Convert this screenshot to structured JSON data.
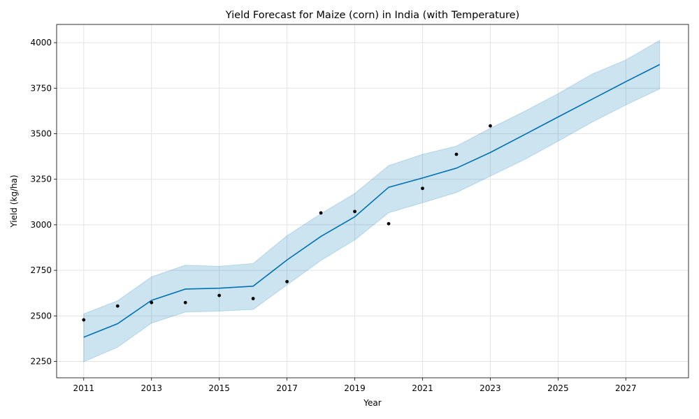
{
  "chart_data": {
    "type": "line",
    "title": "Yield Forecast for Maize (corn) in India (with Temperature)",
    "xlabel": "Year",
    "ylabel": "Yield (kg/ha)",
    "xlim": [
      2010.2,
      2028.85
    ],
    "ylim": [
      2160,
      4100
    ],
    "x_ticks": [
      2011,
      2013,
      2015,
      2017,
      2019,
      2021,
      2023,
      2025,
      2027
    ],
    "y_ticks": [
      2250,
      2500,
      2750,
      3000,
      3250,
      3500,
      3750,
      4000
    ],
    "grid": true,
    "colors": {
      "forecast": "#0072b2",
      "band": "#0072b2",
      "actual": "#000000"
    },
    "series": [
      {
        "kind": "forecast",
        "x": [
          2011,
          2012,
          2013,
          2014,
          2015,
          2016,
          2017,
          2018,
          2019,
          2020,
          2021,
          2022,
          2023,
          2024,
          2025,
          2026,
          2027,
          2028
        ],
        "y": [
          2383,
          2457,
          2585,
          2647,
          2652,
          2663,
          2807,
          2936,
          3044,
          3206,
          3257,
          3311,
          3397,
          3494,
          3592,
          3689,
          3786,
          3880
        ],
        "lower": [
          2248,
          2328,
          2460,
          2521,
          2526,
          2535,
          2670,
          2804,
          2917,
          3066,
          3121,
          3177,
          3267,
          3357,
          3459,
          3563,
          3658,
          3746
        ],
        "upper": [
          2511,
          2583,
          2714,
          2778,
          2772,
          2788,
          2940,
          3061,
          3172,
          3325,
          3387,
          3432,
          3530,
          3622,
          3720,
          3827,
          3905,
          4013
        ]
      },
      {
        "kind": "actual",
        "x": [
          2011,
          2012,
          2013,
          2014,
          2015,
          2016,
          2017,
          2018,
          2019,
          2020,
          2021,
          2022,
          2023
        ],
        "y": [
          2478,
          2554,
          2573,
          2573,
          2612,
          2595,
          2688,
          3065,
          3073,
          3006,
          3200,
          3387,
          3543
        ]
      }
    ]
  }
}
